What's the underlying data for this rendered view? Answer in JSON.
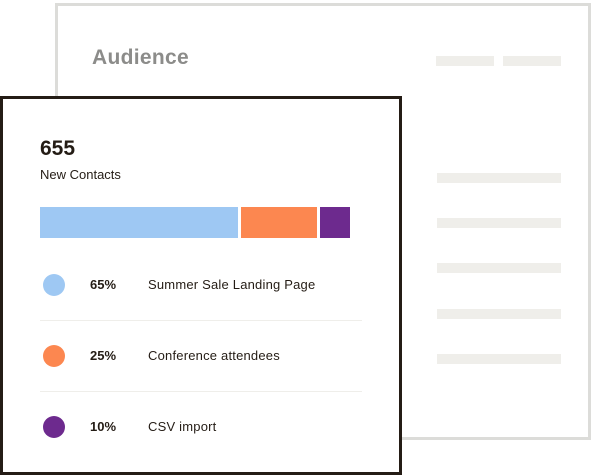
{
  "audience_panel": {
    "title": "Audience"
  },
  "contacts_card": {
    "count": "655",
    "count_label": "New Contacts",
    "sources": [
      {
        "percent": "65%",
        "label": "Summer Sale Landing Page",
        "share": 0.65,
        "color": "#9ec8f3"
      },
      {
        "percent": "25%",
        "label": "Conference attendees",
        "share": 0.25,
        "color": "#fc8750"
      },
      {
        "percent": "10%",
        "label": "CSV import",
        "share": 0.1,
        "color": "#6d2a8e"
      }
    ]
  }
}
